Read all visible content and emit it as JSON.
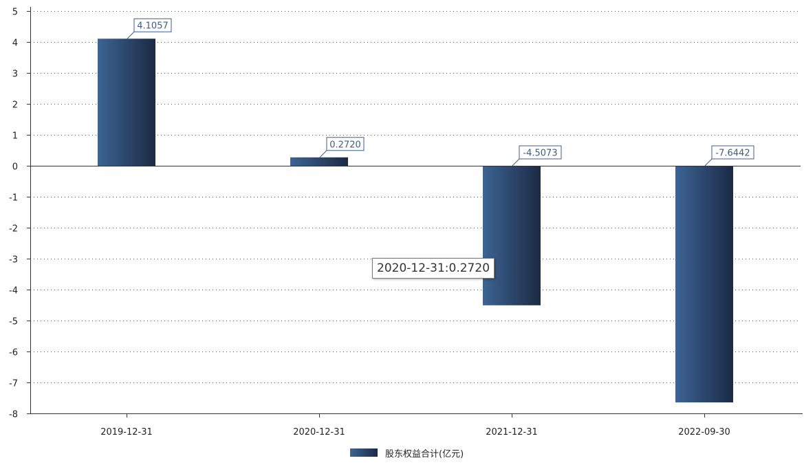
{
  "colors": {
    "bar_light": "#3d6494",
    "bar_dark": "#1b2a44",
    "label_border": "#3b5c8c",
    "label_text": "#3b5c8c",
    "axis": "#333333",
    "grid": "#555555"
  },
  "chart_data": {
    "type": "bar",
    "title": "",
    "xlabel": "",
    "ylabel": "",
    "categories": [
      "2019-12-31",
      "2020-12-31",
      "2021-12-31",
      "2022-09-30"
    ],
    "series": [
      {
        "name": "股东权益合计(亿元)",
        "values": [
          4.1057,
          0.272,
          -4.5073,
          -7.6442
        ],
        "labels": [
          "4.1057",
          "0.2720",
          "-4.5073",
          "-7.6442"
        ]
      }
    ],
    "ylim": [
      -8,
      5
    ],
    "yticks": [
      "5",
      "4",
      "3",
      "2",
      "1",
      "0",
      "-1",
      "-2",
      "-3",
      "-4",
      "-5",
      "-6",
      "-7",
      "-8"
    ],
    "grid": "horizontal-dotted",
    "legend": {
      "position": "bottom-center",
      "label": "股东权益合计(亿元)"
    },
    "tooltip": "2020-12-31:0.2720"
  }
}
